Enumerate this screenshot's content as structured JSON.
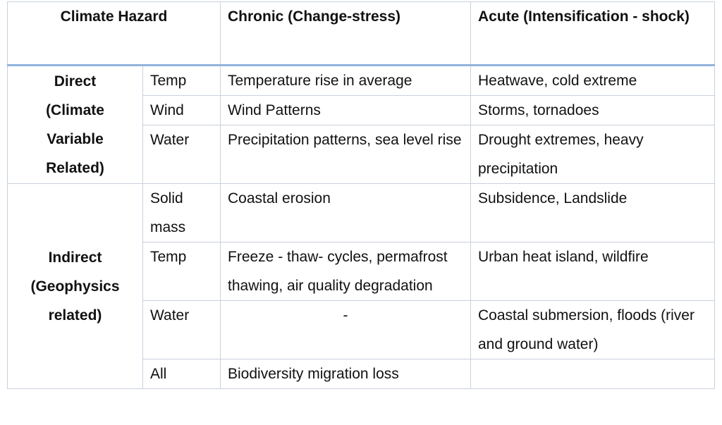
{
  "table": {
    "header": [
      "Climate Hazard",
      "Chronic (Change-stress)",
      "Acute (Intensification - shock)"
    ],
    "groups": [
      {
        "label": "Direct (Climate Variable Related)",
        "rows": [
          [
            "Temp",
            "Temperature rise in average",
            "Heatwave, cold extreme"
          ],
          [
            "Wind",
            "Wind Patterns",
            "Storms, tornadoes"
          ],
          [
            "Water",
            "Precipitation patterns, sea level rise",
            "Drought extremes, heavy precipitation"
          ]
        ]
      },
      {
        "label": "Indirect (Geophysics related)",
        "rows": [
          [
            "Solid mass",
            "Coastal erosion",
            "Subsidence, Landslide"
          ],
          [
            "Temp",
            "Freeze - thaw- cycles, permafrost thawing, air quality degradation",
            "Urban heat island, wildfire"
          ],
          [
            "Water",
            "-",
            "Coastal submersion, floods (river and ground water)"
          ],
          [
            "All",
            "Biodiversity migration loss"
          ]
        ]
      }
    ]
  }
}
